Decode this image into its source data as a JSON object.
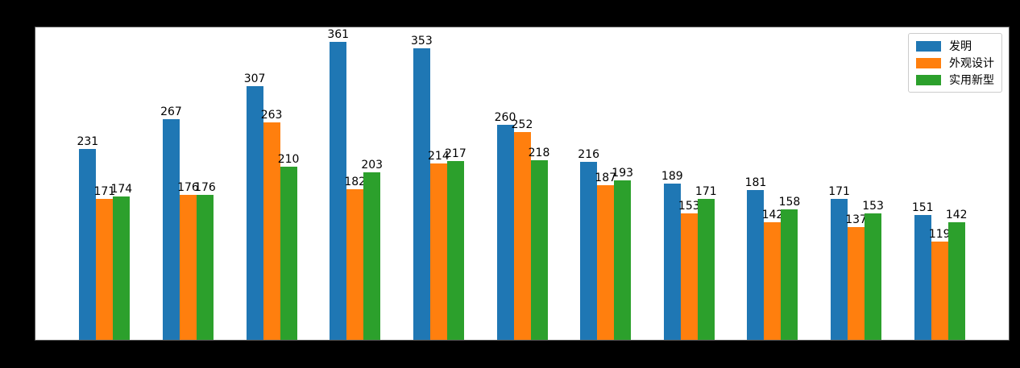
{
  "chart_data": {
    "type": "bar",
    "title": "",
    "xlabel": "",
    "ylabel": "",
    "n_groups": 11,
    "categories": [
      "",
      "",
      "",
      "",
      "",
      "",
      "",
      "",
      "",
      "",
      ""
    ],
    "series": [
      {
        "name": "发明",
        "color": "#1f77b4",
        "values": [
          231,
          267,
          307,
          361,
          353,
          260,
          216,
          189,
          181,
          171,
          151
        ]
      },
      {
        "name": "外观设计",
        "color": "#ff7f0e",
        "values": [
          171,
          176,
          263,
          182,
          214,
          252,
          187,
          153,
          142,
          137,
          119
        ]
      },
      {
        "name": "实用新型",
        "color": "#2ca02c",
        "values": [
          174,
          176,
          210,
          203,
          217,
          218,
          193,
          171,
          158,
          153,
          142
        ]
      }
    ],
    "ylim": [
      0,
      378.5
    ],
    "bar_value_labels_shown": true,
    "grid": false,
    "legend": {
      "position": "upper-right",
      "entries": [
        "发明",
        "外观设计",
        "实用新型"
      ]
    },
    "colors": {
      "figure_background": "#000000",
      "axes_background": "#ffffff",
      "spine": "#5a5a5a",
      "label_text": "#000000"
    }
  }
}
